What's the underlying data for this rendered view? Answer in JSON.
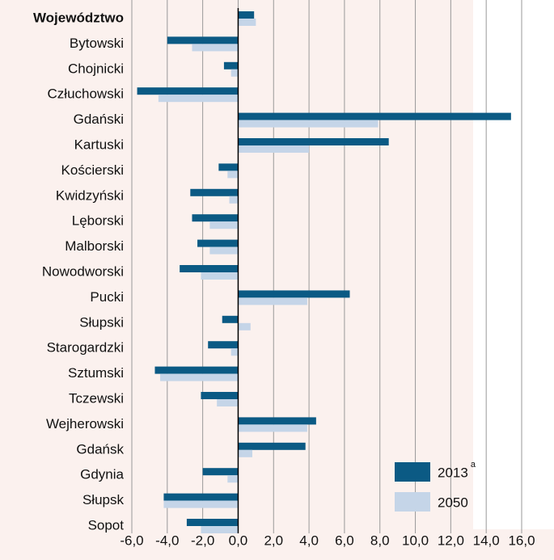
{
  "chart_data": {
    "type": "barh",
    "categories": [
      "Województwo",
      "Bytowski",
      "Chojnicki",
      "Człuchowski",
      "Gdański",
      "Kartuski",
      "Kościerski",
      "Kwidzyński",
      "Lęborski",
      "Malborski",
      "Nowodworski",
      "Pucki",
      "Słupski",
      "Starogardzki",
      "Sztumski",
      "Tczewski",
      "Wejherowski",
      "Gdańsk",
      "Gdynia",
      "Słupsk",
      "Sopot"
    ],
    "series": [
      {
        "name": "2013",
        "legend_note": "a",
        "color": "#0b5a84",
        "values": [
          0.9,
          -4.0,
          -0.8,
          -5.7,
          15.4,
          8.5,
          -1.1,
          -2.7,
          -2.6,
          -2.3,
          -3.3,
          6.3,
          -0.9,
          -1.7,
          -4.7,
          -2.1,
          4.4,
          3.8,
          -2.0,
          -4.2,
          -2.9
        ]
      },
      {
        "name": "2050",
        "color": "#c5d5e8",
        "values": [
          1.0,
          -2.6,
          -0.4,
          -4.5,
          7.9,
          4.0,
          -0.6,
          -0.5,
          -1.6,
          -1.6,
          -2.1,
          3.9,
          0.7,
          -0.4,
          -4.4,
          -1.2,
          3.9,
          0.8,
          -0.6,
          -4.2,
          -2.1
        ]
      }
    ],
    "xlim": [
      -6,
      16
    ],
    "xticks": [
      {
        "value": -6,
        "label": "-6,0"
      },
      {
        "value": -4,
        "label": "-4,0"
      },
      {
        "value": -2,
        "label": "-2,0"
      },
      {
        "value": 0,
        "label": "0,0"
      },
      {
        "value": 2,
        "label": "2,0"
      },
      {
        "value": 4,
        "label": "4,0"
      },
      {
        "value": 6,
        "label": "6,0"
      },
      {
        "value": 8,
        "label": "8,0"
      },
      {
        "value": 10,
        "label": "10,0"
      },
      {
        "value": 12,
        "label": "12,0"
      },
      {
        "value": 14,
        "label": "14,0"
      },
      {
        "value": 16,
        "label": "16,0"
      }
    ],
    "grid": true
  }
}
